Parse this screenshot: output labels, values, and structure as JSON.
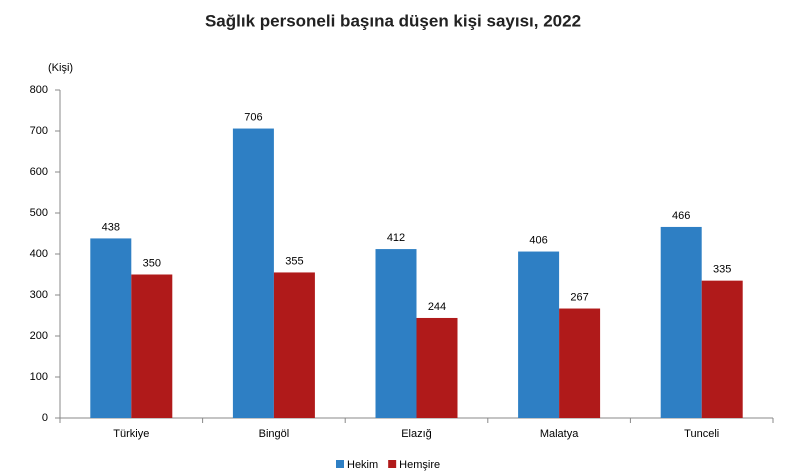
{
  "chart_data": {
    "type": "bar",
    "title": "Sağlık personeli başına düşen kişi sayısı, 2022",
    "y_label": "(Kişi)",
    "categories": [
      "Türkiye",
      "Bingöl",
      "Elazığ",
      "Malatya",
      "Tunceli"
    ],
    "series": [
      {
        "name": "Hekim",
        "color": "#2e7fc4",
        "values": [
          438,
          706,
          412,
          406,
          466
        ]
      },
      {
        "name": "Hemşire",
        "color": "#b01a1a",
        "values": [
          350,
          355,
          244,
          267,
          335
        ]
      }
    ],
    "ylim": [
      0,
      800
    ],
    "yticks": [
      0,
      100,
      200,
      300,
      400,
      500,
      600,
      700,
      800
    ],
    "grid": false,
    "legend": "bottom"
  }
}
